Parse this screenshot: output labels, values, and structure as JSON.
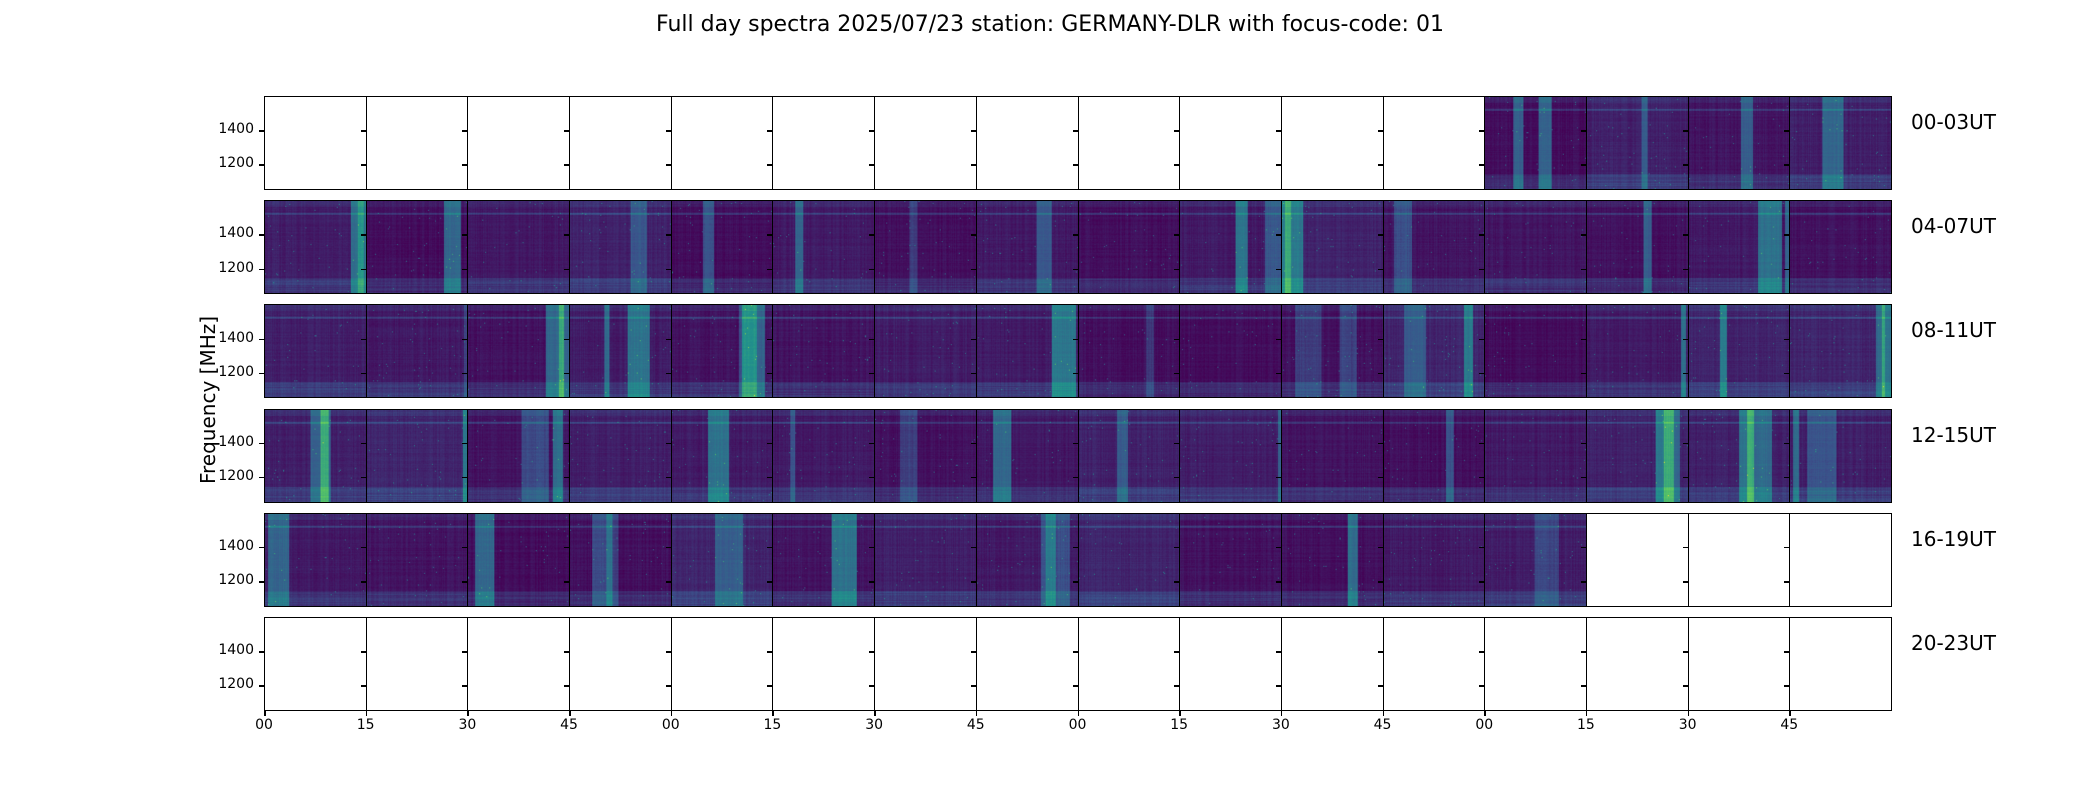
{
  "chart_data": {
    "type": "heatmap",
    "title": "Full day spectra 2025/07/23 station: GERMANY-DLR with focus-code: 01",
    "ylabel": "Frequency [MHz]",
    "xlabel": "",
    "ytick_labels": [
      "1400",
      "1200"
    ],
    "yticks": [
      1400,
      1200
    ],
    "ylim": [
      1050,
      1600
    ],
    "xtick_labels": [
      "00",
      "15",
      "30",
      "45",
      "00",
      "15",
      "30",
      "45",
      "00",
      "15",
      "30",
      "45",
      "00",
      "15",
      "30",
      "45"
    ],
    "colormap": "viridis",
    "colors": {
      "low": "#440154",
      "mid": "#31688e",
      "high": "#35b779"
    },
    "rows": [
      {
        "label": "00-03UT",
        "filled": [
          0,
          0,
          0,
          0,
          0,
          0,
          0,
          0,
          0,
          0,
          0,
          0,
          1,
          1,
          1,
          1
        ]
      },
      {
        "label": "04-07UT",
        "filled": [
          1,
          1,
          1,
          1,
          1,
          1,
          1,
          1,
          1,
          1,
          1,
          1,
          1,
          1,
          1,
          1
        ]
      },
      {
        "label": "08-11UT",
        "filled": [
          1,
          1,
          1,
          1,
          1,
          1,
          1,
          1,
          1,
          1,
          1,
          1,
          1,
          1,
          1,
          1
        ]
      },
      {
        "label": "12-15UT",
        "filled": [
          1,
          1,
          1,
          1,
          1,
          1,
          1,
          1,
          1,
          1,
          1,
          1,
          1,
          1,
          1,
          1
        ]
      },
      {
        "label": "16-19UT",
        "filled": [
          1,
          1,
          1,
          1,
          1,
          1,
          1,
          1,
          1,
          1,
          1,
          1,
          1,
          0,
          0,
          0
        ]
      },
      {
        "label": "20-23UT",
        "filled": [
          0,
          0,
          0,
          0,
          0,
          0,
          0,
          0,
          0,
          0,
          0,
          0,
          0,
          0,
          0,
          0
        ]
      }
    ]
  }
}
